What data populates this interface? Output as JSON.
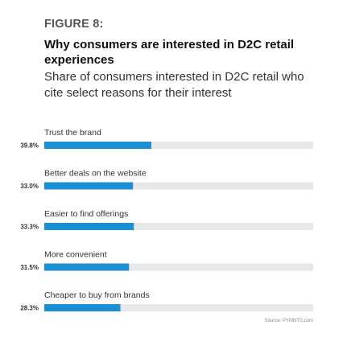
{
  "figure_label": "FIGURE 8:",
  "source": "Source: PYMNTS.com",
  "colors": {
    "bar": "#1b8fd3",
    "track": "#e6e8ea"
  },
  "chart_data": {
    "type": "bar",
    "orientation": "horizontal",
    "title": "Why consumers are interested in D2C retail experiences",
    "subtitle": "Share of consumers interested in D2C retail who cite select reasons for their interest",
    "categories": [
      "Trust the brand",
      "Better deals on the website",
      "Easier to find offerings",
      "More convenient",
      "Cheaper to buy from brands"
    ],
    "values": [
      39.8,
      33.0,
      33.3,
      31.5,
      28.3
    ],
    "value_labels": [
      "39.8%",
      "33.0%",
      "33.3%",
      "31.5%",
      "28.3%"
    ],
    "xlim": [
      0,
      100
    ],
    "grid": false,
    "legend": "none"
  }
}
